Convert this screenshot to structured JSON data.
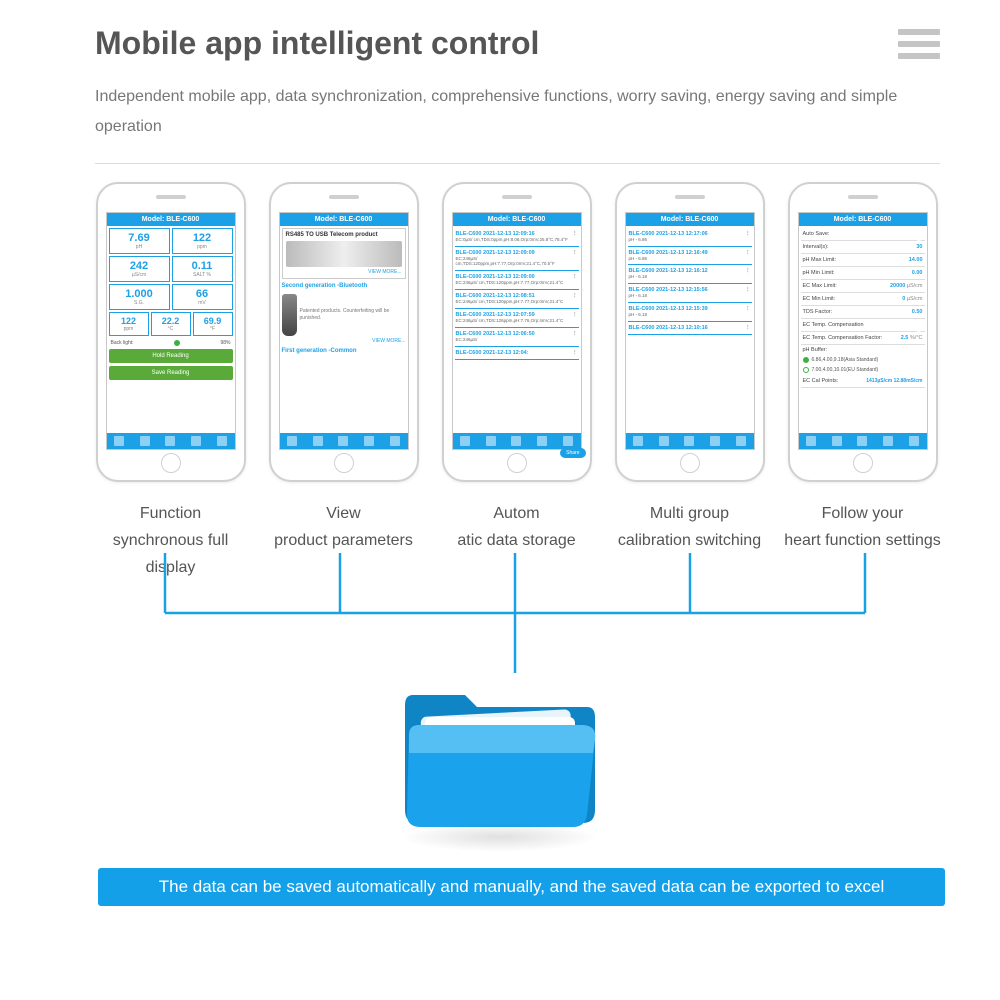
{
  "colors": {
    "accent": "#14a0e8",
    "title": "#555555",
    "text": "#777777",
    "line": "#19a1e6",
    "green": "#5aaa3a",
    "folder_main": "#1aa3ec",
    "folder_light": "#55bef2",
    "folder_dark": "#0f85c6"
  },
  "header": {
    "title": "Mobile app intelligent control",
    "subtitle": "Independent mobile app, data synchronization, comprehensive functions, worry saving, energy saving and simple operation"
  },
  "phones": [
    {
      "model": "Model: BLE-C600",
      "label_line1": "Function",
      "label_line2": "synchronous full display",
      "measurements": {
        "ph": "7.69",
        "ppm_a": "122",
        "us_cm": "242",
        "salt": "0.11",
        "sg": "1.000",
        "mv": "66",
        "ppm_b": "122",
        "c": "22.2",
        "f": "69.9"
      },
      "backlight": "Back light:",
      "battery": "98%",
      "hold": "Hold Reading",
      "save": "Save Reading"
    },
    {
      "model": "Model: BLE-C600",
      "label_line1": "View",
      "label_line2": "product parameters",
      "prod1_title": "RS485 TO USB  Telecom product",
      "gen2": "Second generation -Bluetooth",
      "desc": "Patented products. Counterfeiting will be punished.",
      "gen1": "First generation -Common",
      "view": "VIEW MORE..."
    },
    {
      "model": "Model: BLE-C600",
      "label_line1": "Autom",
      "label_line2": "atic data storage",
      "share": "Share",
      "logs": [
        {
          "h": "BLE-C600   2021-12-13 12:09:16",
          "b": "EC:0µS/ cm,TDS:0ppm,pH:8.06,Orp:0mV,25.8°C,78.4°F"
        },
        {
          "h": "BLE-C600   2021-12-13 12:09:09",
          "b": "EC:246µS/ cm,TDS:120ppm,pH:7.77,Orp:0mV,21.4°C,70.5°F"
        },
        {
          "h": "BLE-C600   2021-12-13 12:09:00",
          "b": "EC:246µS/ cm,TDS:120ppm,pH:7.77,Orp:0mV,21.4°C"
        },
        {
          "h": "BLE-C600   2021-12-13 12:08:51",
          "b": "EC:246µS/ cm,TDS:120ppm,pH:7.77,Orp:0mV,21.4°C"
        },
        {
          "h": "BLE-C600   2021-12-13 12:07:59",
          "b": "EC:246µS/ cm,TDS:126ppm,pH:7.76,Orp:4mV,21.4°C"
        },
        {
          "h": "BLE-C600   2021-12-13 12:06:50",
          "b": "EC:246µS/"
        },
        {
          "h": "BLE-C600   2021-12-13 12:04:",
          "b": ""
        }
      ]
    },
    {
      "model": "Model: BLE-C600",
      "label_line1": "Multi group",
      "label_line2": "calibration switching",
      "logs": [
        {
          "h": "BLE-C600   2021-12-13 12:17:06",
          "b": "pH - 6.86"
        },
        {
          "h": "BLE-C600   2021-12-13 12:16:49",
          "b": "pH - 6.86"
        },
        {
          "h": "BLE-C600   2021-12-13 12:16:12",
          "b": "pH - 6.18"
        },
        {
          "h": "BLE-C600   2021-12-13 12:15:56",
          "b": "pH - 6.18"
        },
        {
          "h": "BLE-C600   2021-12-13 12:15:39",
          "b": "pH - 6.18"
        },
        {
          "h": "BLE-C600   2021-12-13 12:10:16",
          "b": ""
        }
      ]
    },
    {
      "model": "Model: BLE-C600",
      "label_line1": "Follow your",
      "label_line2": "heart function settings",
      "rows": [
        {
          "k": "Auto Save:",
          "toggle": true
        },
        {
          "k": "Interval(s):",
          "v": "30"
        },
        {
          "k": "pH Max Limit:",
          "v": "14.00"
        },
        {
          "k": "pH Min Limit:",
          "v": "0.00"
        },
        {
          "k": "EC Max Limit:",
          "v": "20000",
          "u": "µS/cm"
        },
        {
          "k": "EC Min Limit:",
          "v": "0",
          "u": "µS/cm"
        },
        {
          "k": "TDS Factor:",
          "v": "0.50"
        },
        {
          "k": "EC Temp. Compensation",
          "toggle": true
        },
        {
          "k": "EC Temp. Compensation Factor:",
          "v": "2.5",
          "u": "%/°C"
        }
      ],
      "buffer": "pH Buffer:",
      "opt1": "6.86,4.00,9.18(Asia Standard)",
      "opt2": "7.00,4.00,10.01(EU Standard)",
      "cal": "EC Cal Points:",
      "calv": "1413µS/cm 12.88mS/cm"
    }
  ],
  "banner": "The data can be saved automatically and manually, and the saved data can be exported to excel"
}
